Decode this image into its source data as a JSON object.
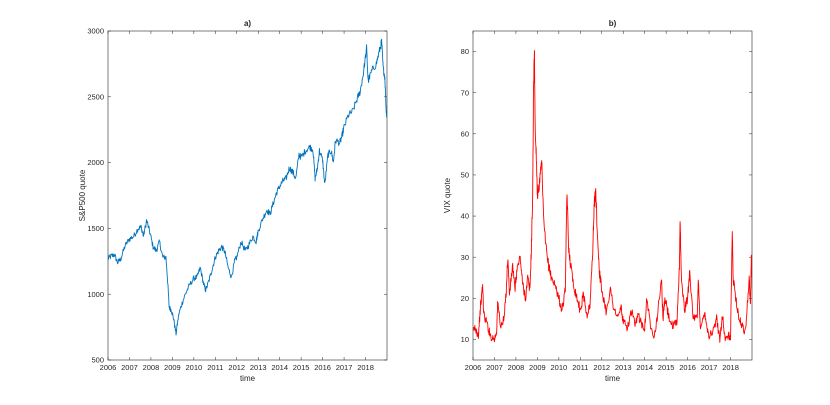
{
  "chart_data": [
    {
      "type": "line",
      "title": "a)",
      "xlabel": "time",
      "ylabel": "S&P500 quote",
      "xlim": [
        2006,
        2019
      ],
      "ylim": [
        500,
        3000
      ],
      "x_ticks": [
        "2006",
        "2007",
        "2008",
        "2009",
        "2010",
        "2011",
        "2012",
        "2013",
        "2014",
        "2015",
        "2016",
        "2017",
        "2018"
      ],
      "y_ticks": [
        "500",
        "1000",
        "1500",
        "2000",
        "2500",
        "3000"
      ],
      "grid": false,
      "color": "#0072BD",
      "series": [
        {
          "points": [
            [
              2006.0,
              1270
            ],
            [
              2006.15,
              1290
            ],
            [
              2006.3,
              1300
            ],
            [
              2006.45,
              1240
            ],
            [
              2006.6,
              1270
            ],
            [
              2006.8,
              1370
            ],
            [
              2007.0,
              1420
            ],
            [
              2007.2,
              1440
            ],
            [
              2007.4,
              1500
            ],
            [
              2007.55,
              1510
            ],
            [
              2007.65,
              1440
            ],
            [
              2007.8,
              1560
            ],
            [
              2007.95,
              1470
            ],
            [
              2008.1,
              1360
            ],
            [
              2008.25,
              1330
            ],
            [
              2008.4,
              1400
            ],
            [
              2008.55,
              1280
            ],
            [
              2008.7,
              1280
            ],
            [
              2008.78,
              1100
            ],
            [
              2008.85,
              900
            ],
            [
              2008.95,
              880
            ],
            [
              2009.05,
              820
            ],
            [
              2009.17,
              700
            ],
            [
              2009.3,
              850
            ],
            [
              2009.45,
              930
            ],
            [
              2009.6,
              1000
            ],
            [
              2009.8,
              1070
            ],
            [
              2010.0,
              1120
            ],
            [
              2010.15,
              1130
            ],
            [
              2010.3,
              1200
            ],
            [
              2010.45,
              1080
            ],
            [
              2010.55,
              1030
            ],
            [
              2010.7,
              1100
            ],
            [
              2010.85,
              1190
            ],
            [
              2011.0,
              1280
            ],
            [
              2011.15,
              1330
            ],
            [
              2011.3,
              1360
            ],
            [
              2011.45,
              1320
            ],
            [
              2011.6,
              1200
            ],
            [
              2011.75,
              1130
            ],
            [
              2011.9,
              1250
            ],
            [
              2012.0,
              1280
            ],
            [
              2012.2,
              1400
            ],
            [
              2012.4,
              1330
            ],
            [
              2012.55,
              1370
            ],
            [
              2012.75,
              1440
            ],
            [
              2012.9,
              1400
            ],
            [
              2013.0,
              1480
            ],
            [
              2013.2,
              1570
            ],
            [
              2013.4,
              1640
            ],
            [
              2013.55,
              1610
            ],
            [
              2013.7,
              1690
            ],
            [
              2013.85,
              1770
            ],
            [
              2014.0,
              1820
            ],
            [
              2014.15,
              1860
            ],
            [
              2014.3,
              1880
            ],
            [
              2014.45,
              1960
            ],
            [
              2014.6,
              1930
            ],
            [
              2014.75,
              1880
            ],
            [
              2014.9,
              2060
            ],
            [
              2015.0,
              2040
            ],
            [
              2015.2,
              2090
            ],
            [
              2015.4,
              2120
            ],
            [
              2015.55,
              2100
            ],
            [
              2015.65,
              1880
            ],
            [
              2015.75,
              1950
            ],
            [
              2015.85,
              2090
            ],
            [
              2016.0,
              2020
            ],
            [
              2016.1,
              1830
            ],
            [
              2016.25,
              2060
            ],
            [
              2016.4,
              2090
            ],
            [
              2016.5,
              2000
            ],
            [
              2016.6,
              2170
            ],
            [
              2016.8,
              2150
            ],
            [
              2016.9,
              2200
            ],
            [
              2017.0,
              2270
            ],
            [
              2017.2,
              2360
            ],
            [
              2017.4,
              2390
            ],
            [
              2017.6,
              2480
            ],
            [
              2017.75,
              2540
            ],
            [
              2017.9,
              2680
            ],
            [
              2018.05,
              2870
            ],
            [
              2018.12,
              2620
            ],
            [
              2018.3,
              2700
            ],
            [
              2018.5,
              2750
            ],
            [
              2018.65,
              2850
            ],
            [
              2018.75,
              2920
            ],
            [
              2018.82,
              2720
            ],
            [
              2018.9,
              2650
            ],
            [
              2018.96,
              2400
            ],
            [
              2019.0,
              2350
            ]
          ]
        }
      ]
    },
    {
      "type": "line",
      "title": "b)",
      "xlabel": "time",
      "ylabel": "VIX quote",
      "xlim": [
        2006,
        2019
      ],
      "ylim": [
        5,
        85
      ],
      "x_ticks": [
        "2006",
        "2007",
        "2008",
        "2009",
        "2010",
        "2011",
        "2012",
        "2013",
        "2014",
        "2015",
        "2016",
        "2017",
        "2018"
      ],
      "y_ticks": [
        "10",
        "20",
        "30",
        "40",
        "50",
        "60",
        "70",
        "80"
      ],
      "grid": false,
      "color": "#FF0000",
      "series": [
        {
          "points": [
            [
              2006.0,
              12
            ],
            [
              2006.1,
              13
            ],
            [
              2006.25,
              11
            ],
            [
              2006.35,
              18
            ],
            [
              2006.45,
              23
            ],
            [
              2006.5,
              16
            ],
            [
              2006.65,
              14
            ],
            [
              2006.8,
              11
            ],
            [
              2007.0,
              10
            ],
            [
              2007.1,
              12
            ],
            [
              2007.15,
              19
            ],
            [
              2007.3,
              13
            ],
            [
              2007.45,
              15
            ],
            [
              2007.55,
              22
            ],
            [
              2007.62,
              30
            ],
            [
              2007.7,
              21
            ],
            [
              2007.85,
              28
            ],
            [
              2007.95,
              22
            ],
            [
              2008.05,
              27
            ],
            [
              2008.2,
              30
            ],
            [
              2008.3,
              24
            ],
            [
              2008.45,
              20
            ],
            [
              2008.55,
              25
            ],
            [
              2008.65,
              22
            ],
            [
              2008.72,
              32
            ],
            [
              2008.78,
              45
            ],
            [
              2008.82,
              70
            ],
            [
              2008.86,
              81
            ],
            [
              2008.9,
              60
            ],
            [
              2008.95,
              55
            ],
            [
              2009.0,
              45
            ],
            [
              2009.1,
              48
            ],
            [
              2009.2,
              53
            ],
            [
              2009.3,
              38
            ],
            [
              2009.45,
              30
            ],
            [
              2009.6,
              26
            ],
            [
              2009.75,
              24
            ],
            [
              2009.9,
              22
            ],
            [
              2010.0,
              20
            ],
            [
              2010.15,
              17
            ],
            [
              2010.3,
              22
            ],
            [
              2010.38,
              46
            ],
            [
              2010.45,
              33
            ],
            [
              2010.55,
              28
            ],
            [
              2010.7,
              23
            ],
            [
              2010.85,
              20
            ],
            [
              2011.0,
              17
            ],
            [
              2011.15,
              21
            ],
            [
              2011.3,
              16
            ],
            [
              2011.45,
              18
            ],
            [
              2011.58,
              32
            ],
            [
              2011.65,
              43
            ],
            [
              2011.72,
              46
            ],
            [
              2011.8,
              35
            ],
            [
              2011.9,
              26
            ],
            [
              2012.0,
              22
            ],
            [
              2012.2,
              17
            ],
            [
              2012.4,
              22
            ],
            [
              2012.55,
              18
            ],
            [
              2012.75,
              15
            ],
            [
              2012.9,
              18
            ],
            [
              2013.0,
              14
            ],
            [
              2013.2,
              13
            ],
            [
              2013.4,
              17
            ],
            [
              2013.55,
              13
            ],
            [
              2013.7,
              16
            ],
            [
              2013.85,
              14
            ],
            [
              2014.0,
              13
            ],
            [
              2014.1,
              20
            ],
            [
              2014.25,
              14
            ],
            [
              2014.45,
              11
            ],
            [
              2014.6,
              16
            ],
            [
              2014.78,
              25
            ],
            [
              2014.85,
              15
            ],
            [
              2014.95,
              20
            ],
            [
              2015.1,
              16
            ],
            [
              2015.3,
              13
            ],
            [
              2015.5,
              14
            ],
            [
              2015.62,
              28
            ],
            [
              2015.65,
              40
            ],
            [
              2015.7,
              26
            ],
            [
              2015.85,
              17
            ],
            [
              2016.0,
              20
            ],
            [
              2016.1,
              27
            ],
            [
              2016.25,
              15
            ],
            [
              2016.45,
              15
            ],
            [
              2016.5,
              25
            ],
            [
              2016.6,
              12
            ],
            [
              2016.8,
              17
            ],
            [
              2016.9,
              13
            ],
            [
              2017.0,
              11
            ],
            [
              2017.2,
              12
            ],
            [
              2017.35,
              15
            ],
            [
              2017.5,
              10
            ],
            [
              2017.62,
              16
            ],
            [
              2017.75,
              10
            ],
            [
              2017.9,
              11
            ],
            [
              2018.0,
              10
            ],
            [
              2018.08,
              37
            ],
            [
              2018.12,
              25
            ],
            [
              2018.25,
              20
            ],
            [
              2018.4,
              15
            ],
            [
              2018.55,
              13
            ],
            [
              2018.7,
              12
            ],
            [
              2018.8,
              20
            ],
            [
              2018.87,
              25
            ],
            [
              2018.93,
              18
            ],
            [
              2018.97,
              30
            ],
            [
              2019.0,
              25
            ]
          ]
        }
      ]
    }
  ]
}
